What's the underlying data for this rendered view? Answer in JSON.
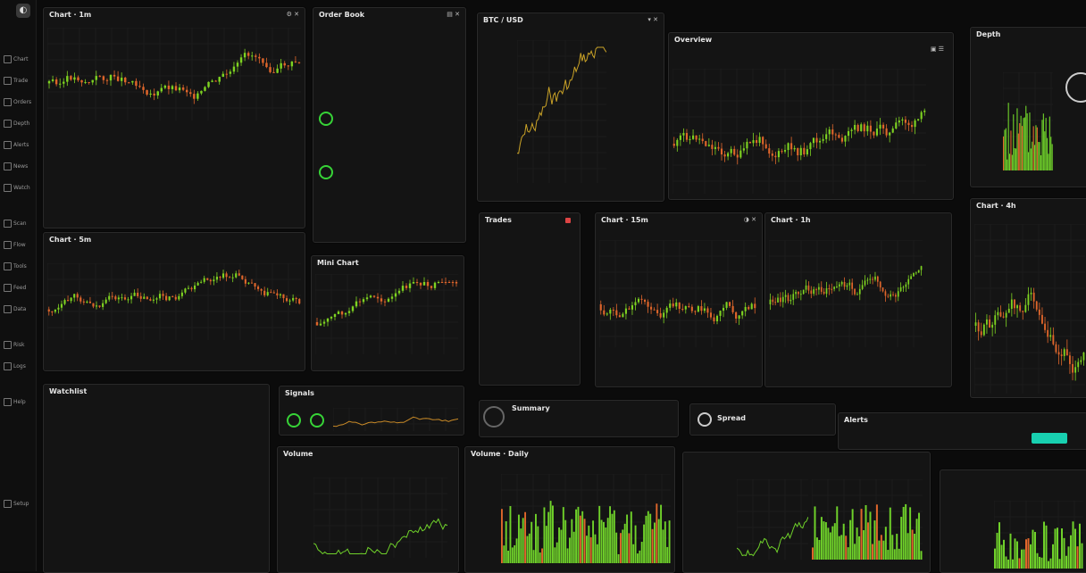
{
  "sidebar": {
    "items": [
      {
        "label": "Chart",
        "icon": "chart-icon"
      },
      {
        "label": "Trade",
        "icon": "trade-icon"
      },
      {
        "label": "Orders",
        "icon": "orders-icon"
      },
      {
        "label": "Depth",
        "icon": "depth-icon"
      },
      {
        "label": "Alerts",
        "icon": "bell-icon"
      },
      {
        "label": "News",
        "icon": "news-icon"
      },
      {
        "label": "Watch",
        "icon": "watchlist-icon"
      },
      {
        "label": "Scan",
        "icon": "scanner-icon"
      },
      {
        "label": "Flow",
        "icon": "flow-icon"
      },
      {
        "label": "Tools",
        "icon": "tools-icon"
      },
      {
        "label": "Feed",
        "icon": "feed-icon"
      },
      {
        "label": "Data",
        "icon": "data-icon"
      },
      {
        "label": "Risk",
        "icon": "risk-icon"
      },
      {
        "label": "Logs",
        "icon": "logs-icon"
      },
      {
        "label": "Help",
        "icon": "help-icon"
      },
      {
        "label": "Setup",
        "icon": "gear-icon"
      }
    ]
  },
  "panels": {
    "p1": {
      "title": "Chart · 1m"
    },
    "p2": {
      "title": "Order Book"
    },
    "p3": {
      "title": "BTC / USD"
    },
    "p4": {
      "title": "Overview"
    },
    "p5": {
      "title": "Depth"
    },
    "p6": {
      "title": "Chart · 5m"
    },
    "p7": {
      "title": "Mini Chart"
    },
    "p8": {
      "title": "Trades"
    },
    "p9": {
      "title": "Chart · 15m"
    },
    "p10": {
      "title": "Chart · 1h"
    },
    "p11": {
      "title": "Summary"
    },
    "p12": {
      "title": "Signals"
    },
    "p13": {
      "title": "Chart · 4h"
    },
    "p14": {
      "title": "Volume"
    },
    "p15": {
      "title": "Volume · Daily"
    },
    "p16": {
      "title": "Watchlist"
    },
    "p17": {
      "title": "Spread"
    },
    "p18": {
      "title": "Alerts"
    }
  }
}
